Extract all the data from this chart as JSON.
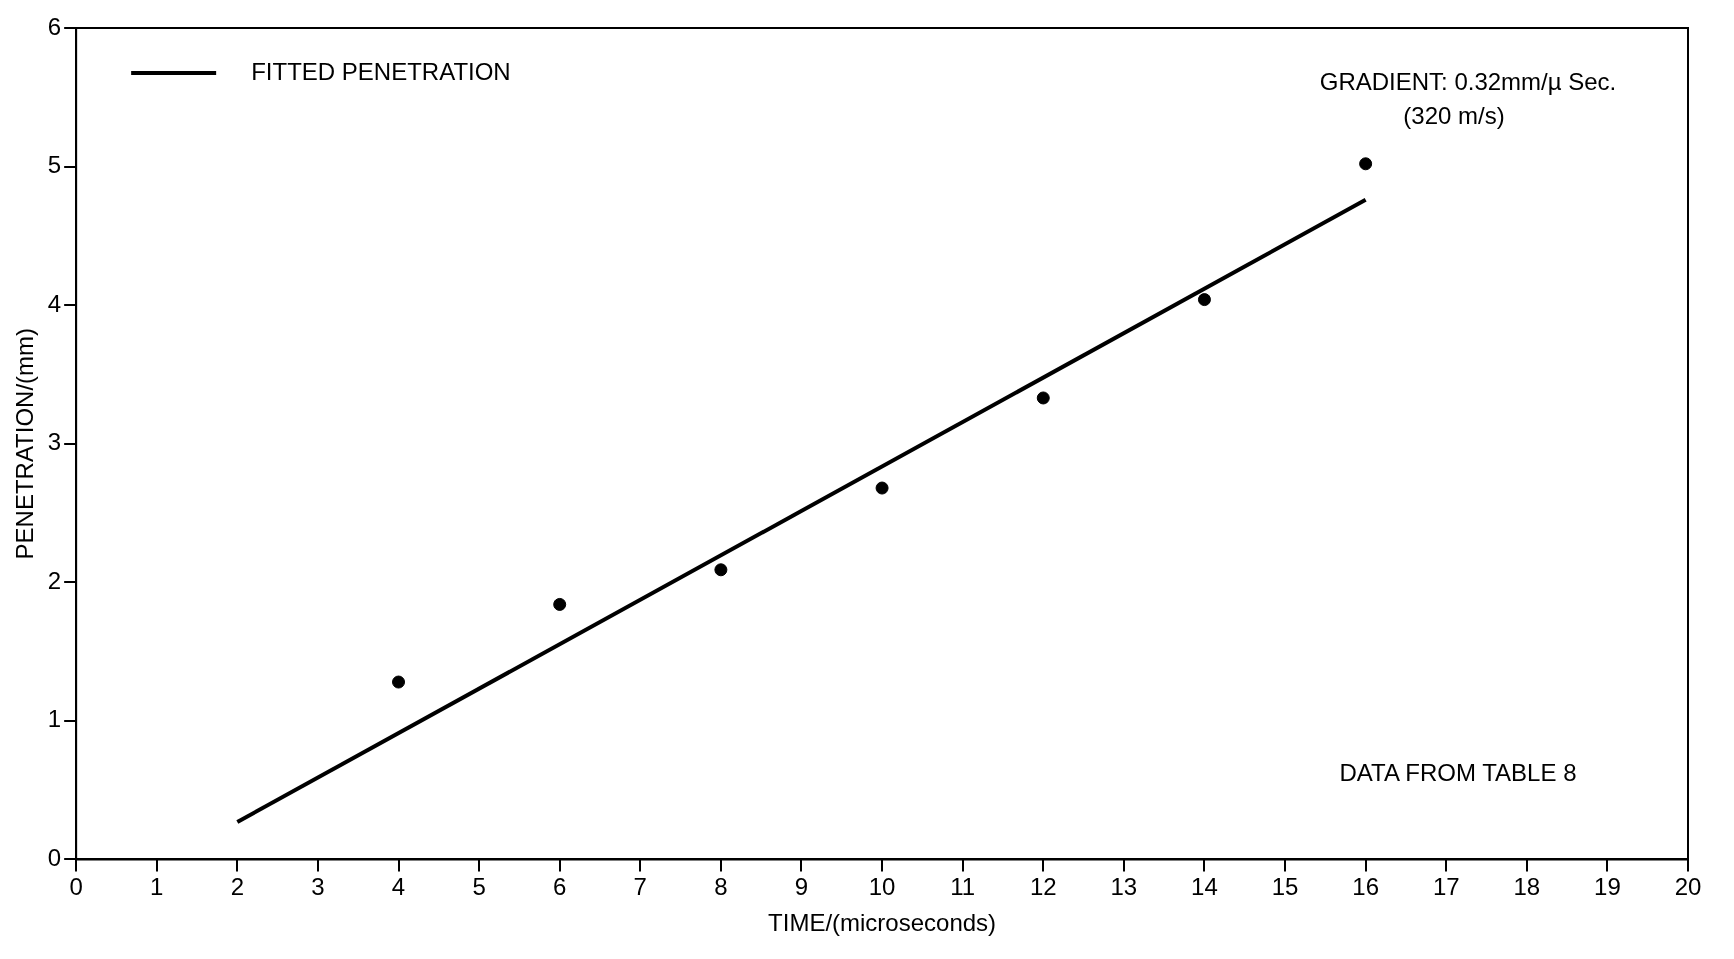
{
  "chart_data": {
    "type": "scatter",
    "xlabel": "TIME/(microseconds)",
    "ylabel": "PENETRATION/(mm)",
    "xlim": [
      0,
      20
    ],
    "xticks": [
      0,
      1,
      2,
      3,
      4,
      5,
      6,
      7,
      8,
      9,
      10,
      11,
      12,
      13,
      14,
      15,
      16,
      17,
      18,
      19,
      20
    ],
    "ylim": [
      0,
      6
    ],
    "yticks": [
      0,
      1,
      2,
      3,
      4,
      5,
      6
    ],
    "grid": false,
    "legend": "top left",
    "marker": "circle",
    "series": [
      {
        "color": "#000000",
        "x": [
          4,
          6,
          8,
          10,
          12,
          14,
          16
        ],
        "values": [
          1.28,
          1.84,
          2.09,
          2.68,
          3.33,
          4.04,
          5.02
        ]
      },
      {
        "type": "line",
        "name": "FITTED PENETRATION",
        "color": "#000000",
        "marker": "none",
        "line_style": "solid",
        "x": [
          2,
          16
        ],
        "values": [
          0.27,
          4.76
        ]
      }
    ],
    "annotations": [
      "GRADIENT: 0.32mm/µ Sec.\n(320 m/s)",
      "DATA FROM TABLE 8"
    ]
  }
}
